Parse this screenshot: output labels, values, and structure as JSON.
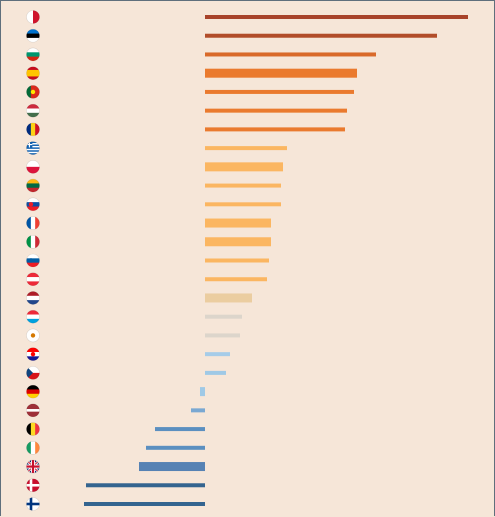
{
  "chart_data": {
    "type": "bar",
    "orientation": "horizontal",
    "title": "",
    "xlabel": "",
    "ylabel": "",
    "grid": false,
    "legend": "none",
    "xlim": [
      -12.1,
      26.3
    ],
    "categories": [
      {
        "flag": "malta",
        "value": 26.3,
        "color": "#a8432a",
        "thickness": "thin"
      },
      {
        "flag": "estonia",
        "value": 23.2,
        "color": "#b24d2a",
        "thickness": "thin"
      },
      {
        "flag": "bulgaria",
        "value": 17.1,
        "color": "#d96a2a",
        "thickness": "thin"
      },
      {
        "flag": "spain",
        "value": 15.2,
        "color": "#ea7a2e",
        "thickness": "thick"
      },
      {
        "flag": "portugal",
        "value": 14.9,
        "color": "#ea7a2e",
        "thickness": "thin"
      },
      {
        "flag": "hungary",
        "value": 14.2,
        "color": "#ea7a2e",
        "thickness": "thin"
      },
      {
        "flag": "romania",
        "value": 14.0,
        "color": "#ea7a2e",
        "thickness": "thin"
      },
      {
        "flag": "greece",
        "value": 8.2,
        "color": "#fbb661",
        "thickness": "thin"
      },
      {
        "flag": "poland",
        "value": 7.8,
        "color": "#fbb661",
        "thickness": "thick"
      },
      {
        "flag": "lithuania",
        "value": 7.6,
        "color": "#fbb661",
        "thickness": "thin"
      },
      {
        "flag": "slovakia",
        "value": 7.6,
        "color": "#fbb661",
        "thickness": "thin"
      },
      {
        "flag": "france",
        "value": 6.6,
        "color": "#fbb661",
        "thickness": "thick"
      },
      {
        "flag": "italy",
        "value": 6.6,
        "color": "#fbb661",
        "thickness": "thick"
      },
      {
        "flag": "slovenia",
        "value": 6.4,
        "color": "#fbb661",
        "thickness": "thin"
      },
      {
        "flag": "austria",
        "value": 6.2,
        "color": "#fbb661",
        "thickness": "thin"
      },
      {
        "flag": "netherlands",
        "value": 4.7,
        "color": "#ebcda0",
        "thickness": "thick"
      },
      {
        "flag": "luxembourg",
        "value": 3.7,
        "color": "#dcd5cb",
        "thickness": "thin"
      },
      {
        "flag": "cyprus",
        "value": 3.5,
        "color": "#dcd5cb",
        "thickness": "thin"
      },
      {
        "flag": "croatia",
        "value": 2.5,
        "color": "#a6cce8",
        "thickness": "thin"
      },
      {
        "flag": "czech-republic",
        "value": 2.1,
        "color": "#9fc9e6",
        "thickness": "thin"
      },
      {
        "flag": "germany",
        "value": -0.5,
        "color": "#9fc9e6",
        "thickness": "thick"
      },
      {
        "flag": "latvia",
        "value": -1.4,
        "color": "#7aa8d2",
        "thickness": "thin"
      },
      {
        "flag": "belgium",
        "value": -5.0,
        "color": "#5b8fc0",
        "thickness": "thin"
      },
      {
        "flag": "ireland",
        "value": -5.9,
        "color": "#5b8fc0",
        "thickness": "thin"
      },
      {
        "flag": "united-kingdom",
        "value": -6.6,
        "color": "#5682b4",
        "thickness": "thick"
      },
      {
        "flag": "denmark",
        "value": -11.9,
        "color": "#34648f",
        "thickness": "thin"
      },
      {
        "flag": "finland",
        "value": -12.1,
        "color": "#34648f",
        "thickness": "thin"
      }
    ]
  }
}
